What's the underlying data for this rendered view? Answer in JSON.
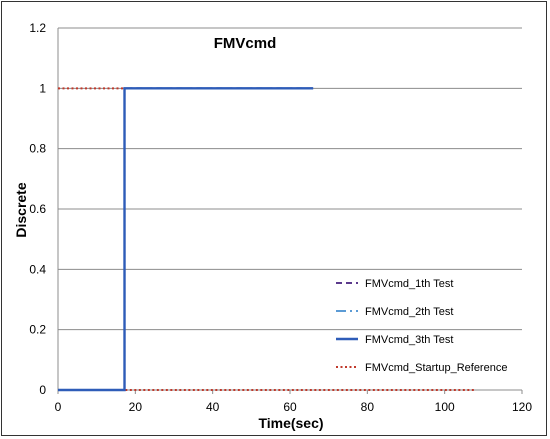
{
  "chart_data": {
    "type": "line",
    "title": "FMVcmd",
    "xlabel": "Time(sec)",
    "ylabel": "Discrete",
    "xlim": [
      0,
      120
    ],
    "ylim": [
      0,
      1.2
    ],
    "xticks": [
      "0",
      "20",
      "40",
      "60",
      "80",
      "100",
      "120"
    ],
    "yticks": [
      "0",
      "0.2",
      "0.4",
      "0.6",
      "0.8",
      "1",
      "1.2"
    ],
    "grid": "horizontal",
    "legend_position": "bottom-right",
    "series": [
      {
        "name": "FMVcmd_1th Test",
        "color": "#5b3a8c",
        "style": "dashed",
        "points": [
          [
            0,
            0
          ],
          [
            17.2,
            0
          ],
          [
            17.2,
            1
          ],
          [
            66,
            1
          ]
        ]
      },
      {
        "name": "FMVcmd_2th Test",
        "color": "#5b9bd5",
        "style": "dashdot",
        "points": [
          [
            0,
            0
          ],
          [
            17.2,
            0
          ],
          [
            17.2,
            1
          ],
          [
            66,
            1
          ]
        ]
      },
      {
        "name": "FMVcmd_3th Test",
        "color": "#2e5cb8",
        "style": "solid",
        "points": [
          [
            0,
            0
          ],
          [
            17.2,
            0
          ],
          [
            17.2,
            1
          ],
          [
            66,
            1
          ]
        ]
      },
      {
        "name": "FMVcmd_Startup_Reference",
        "color": "#c0392b",
        "style": "dotted",
        "points": [
          [
            0,
            1
          ],
          [
            17.2,
            1
          ],
          [
            17.2,
            0
          ],
          [
            108,
            0
          ]
        ]
      }
    ]
  }
}
